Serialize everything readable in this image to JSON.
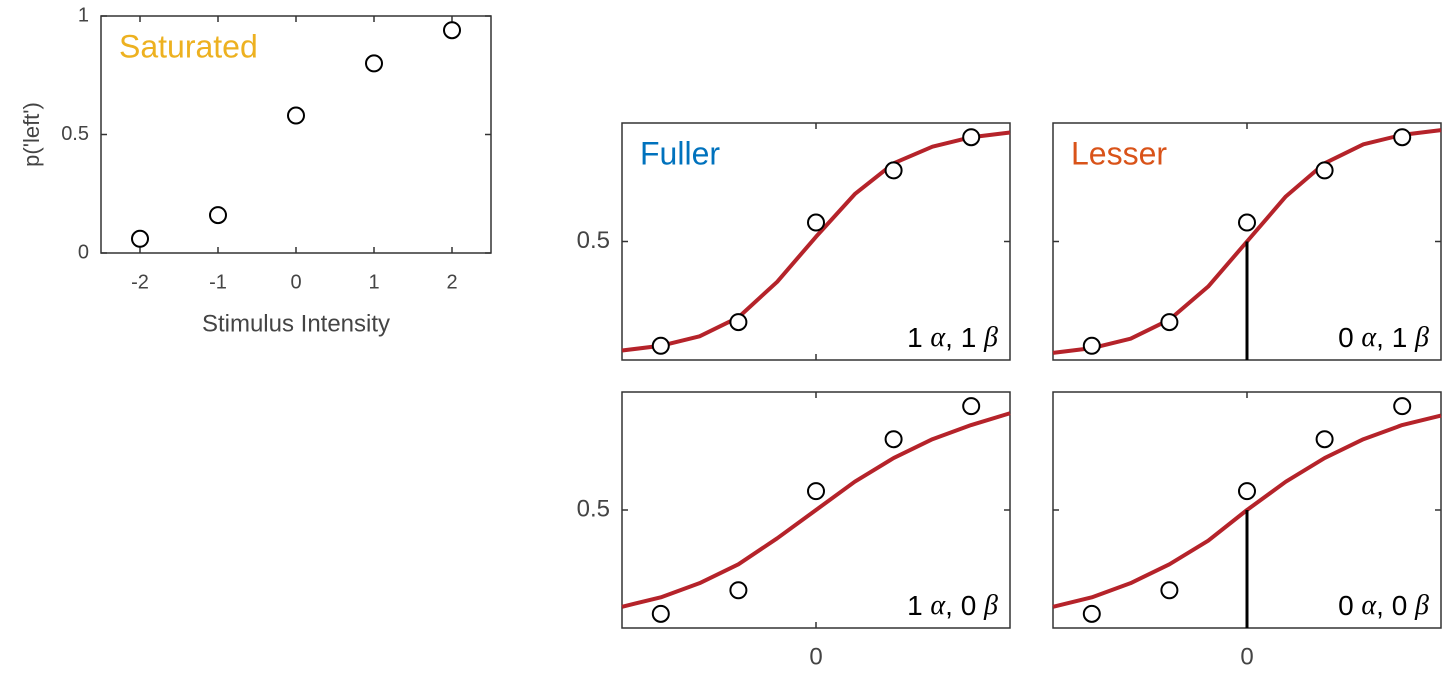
{
  "chart_data": [
    {
      "type": "scatter",
      "label": "Saturated",
      "label_color": "#edb120",
      "xlabel": "Stimulus Intensity",
      "ylabel": "p('left')",
      "x": [
        -2,
        -1,
        0,
        1,
        2
      ],
      "values": [
        0.06,
        0.16,
        0.58,
        0.8,
        0.94
      ],
      "xlim": [
        -2.5,
        2.5
      ],
      "ylim": [
        0,
        1
      ],
      "xticks": [
        -2,
        -1,
        0,
        1,
        2
      ],
      "yticks": [
        0,
        0.5,
        1
      ],
      "show_xticklabels": true,
      "show_yticklabels": true
    },
    {
      "type": "scatter",
      "label": "Fuller",
      "label_color": "#0072bd",
      "params": "1 α, 1 β",
      "x": [
        -2,
        -1,
        0,
        1,
        2
      ],
      "values": [
        0.06,
        0.16,
        0.58,
        0.8,
        0.94
      ],
      "fit": {
        "color": "#b5232a",
        "x": [
          -2.5,
          -2,
          -1.5,
          -1,
          -0.5,
          0,
          0.5,
          1,
          1.5,
          2,
          2.5
        ],
        "values": [
          0.04,
          0.06,
          0.1,
          0.18,
          0.33,
          0.52,
          0.7,
          0.83,
          0.9,
          0.94,
          0.96
        ]
      },
      "xlim": [
        -2.5,
        2.5
      ],
      "ylim": [
        0,
        1
      ],
      "xticks": [
        0
      ],
      "yticks": [
        0.5
      ],
      "show_xticklabels": false,
      "show_yticklabels": true,
      "threshold_line": false
    },
    {
      "type": "scatter",
      "label": "Lesser",
      "label_color": "#d95319",
      "params": "0 α, 1 β",
      "x": [
        -2,
        -1,
        0,
        1,
        2
      ],
      "values": [
        0.06,
        0.16,
        0.58,
        0.8,
        0.94
      ],
      "fit": {
        "color": "#b5232a",
        "x": [
          -2.5,
          -2,
          -1.5,
          -1,
          -0.5,
          0,
          0.5,
          1,
          1.5,
          2,
          2.5
        ],
        "values": [
          0.03,
          0.05,
          0.09,
          0.17,
          0.31,
          0.5,
          0.69,
          0.83,
          0.91,
          0.95,
          0.97
        ]
      },
      "xlim": [
        -2.5,
        2.5
      ],
      "ylim": [
        0,
        1
      ],
      "xticks": [
        0
      ],
      "yticks": [
        0.5
      ],
      "show_xticklabels": false,
      "show_yticklabels": false,
      "threshold_line": true
    },
    {
      "type": "scatter",
      "params": "1 α, 0 β",
      "x": [
        -2,
        -1,
        0,
        1,
        2
      ],
      "values": [
        0.06,
        0.16,
        0.58,
        0.8,
        0.94
      ],
      "fit": {
        "color": "#b5232a",
        "x": [
          -2.5,
          -2,
          -1.5,
          -1,
          -0.5,
          0,
          0.5,
          1,
          1.5,
          2,
          2.5
        ],
        "values": [
          0.09,
          0.13,
          0.19,
          0.27,
          0.38,
          0.5,
          0.62,
          0.72,
          0.8,
          0.86,
          0.91
        ]
      },
      "xlim": [
        -2.5,
        2.5
      ],
      "ylim": [
        0,
        1
      ],
      "xticks": [
        0
      ],
      "yticks": [
        0.5
      ],
      "show_xticklabels": true,
      "show_yticklabels": true,
      "threshold_line": false
    },
    {
      "type": "scatter",
      "params": "0 α, 0 β",
      "x": [
        -2,
        -1,
        0,
        1,
        2
      ],
      "values": [
        0.06,
        0.16,
        0.58,
        0.8,
        0.94
      ],
      "fit": {
        "color": "#b5232a",
        "x": [
          -2.5,
          -2,
          -1.5,
          -1,
          -0.5,
          0,
          0.5,
          1,
          1.5,
          2,
          2.5
        ],
        "values": [
          0.09,
          0.13,
          0.19,
          0.27,
          0.37,
          0.5,
          0.62,
          0.72,
          0.8,
          0.86,
          0.9
        ]
      },
      "xlim": [
        -2.5,
        2.5
      ],
      "ylim": [
        0,
        1
      ],
      "xticks": [
        0
      ],
      "yticks": [
        0.5
      ],
      "show_xticklabels": true,
      "show_yticklabels": false,
      "threshold_line": true
    }
  ]
}
